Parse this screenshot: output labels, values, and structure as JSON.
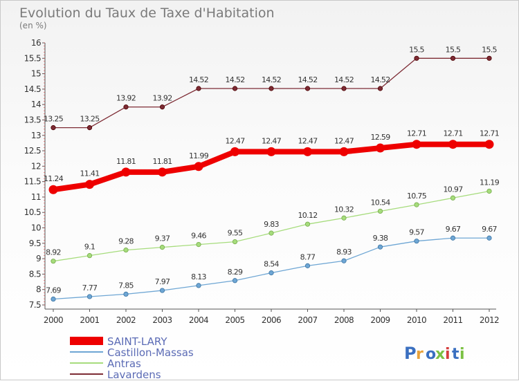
{
  "chart_data": {
    "type": "line",
    "title": "Evolution du Taux de Taxe d'Habitation",
    "subtitle": "(en %)",
    "xlabel": "",
    "ylabel": "",
    "x": [
      "2000",
      "2001",
      "2002",
      "2003",
      "2004",
      "2005",
      "2006",
      "2007",
      "2008",
      "2009",
      "2010",
      "2011",
      "2012"
    ],
    "ylim": [
      7.5,
      16
    ],
    "yticks": [
      "7.5",
      "8",
      "8.5",
      "9",
      "9.5",
      "10",
      "10.5",
      "11",
      "11.5",
      "12",
      "12.5",
      "13",
      "13.5",
      "14",
      "14.5",
      "15",
      "15.5",
      "16"
    ],
    "grid": false,
    "legend_position": "bottom-left",
    "series": [
      {
        "name": "SAINT-LARY",
        "color": "#ee0000",
        "values": [
          11.24,
          11.41,
          11.81,
          11.81,
          11.99,
          12.47,
          12.47,
          12.47,
          12.47,
          12.59,
          12.71,
          12.71,
          12.71
        ],
        "labels": [
          "11.24",
          "11.41",
          "11.81",
          "11.81",
          "11.99",
          "12.47",
          "12.47",
          "12.47",
          "12.47",
          "12.59",
          "12.71",
          "12.71",
          "12.71"
        ]
      },
      {
        "name": "Castillon-Massas",
        "color": "#6ea6d4",
        "values": [
          7.69,
          7.77,
          7.85,
          7.97,
          8.13,
          8.29,
          8.54,
          8.77,
          8.93,
          9.38,
          9.57,
          9.67,
          9.67
        ],
        "labels": [
          "7.69",
          "7.77",
          "7.85",
          "7.97",
          "8.13",
          "8.29",
          "8.54",
          "8.77",
          "8.93",
          "9.38",
          "9.57",
          "9.67",
          "9.67"
        ]
      },
      {
        "name": "Antras",
        "color": "#a6dc7c",
        "values": [
          8.92,
          9.1,
          9.28,
          9.37,
          9.46,
          9.55,
          9.83,
          10.12,
          10.32,
          10.54,
          10.75,
          10.97,
          11.19
        ],
        "labels": [
          "8.92",
          "9.1",
          "9.28",
          "9.37",
          "9.46",
          "9.55",
          "9.83",
          "10.12",
          "10.32",
          "10.54",
          "10.75",
          "10.97",
          "11.19"
        ]
      },
      {
        "name": "Lavardens",
        "color": "#7d2b34",
        "values": [
          13.25,
          13.25,
          13.92,
          13.92,
          14.52,
          14.52,
          14.52,
          14.52,
          14.52,
          14.52,
          15.5,
          15.5,
          15.5
        ],
        "labels": [
          "13.25",
          "13.25",
          "13.92",
          "13.92",
          "14.52",
          "14.52",
          "14.52",
          "14.52",
          "14.52",
          "14.52",
          "15.5",
          "15.5",
          "15.5"
        ]
      }
    ]
  },
  "logo": {
    "text": "Proxiti",
    "colors": [
      "#3a6fc0",
      "#e8a23a",
      "#3a6fc0",
      "#7bc143",
      "#d43d3d",
      "#3a6fc0",
      "#7bc143"
    ]
  }
}
